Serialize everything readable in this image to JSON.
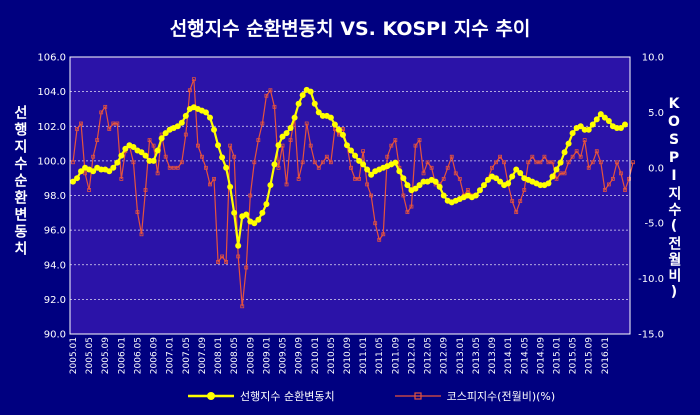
{
  "chart_data": {
    "type": "line",
    "title": "선행지수 순환변동치 VS. KOSPI 지수 추이",
    "ylabel": "선행지수순환변동치",
    "y2label": "KOSPI지수(전월비)",
    "ylim": [
      90.0,
      106.0
    ],
    "y2lim": [
      -15.0,
      10.0
    ],
    "y_ticks": [
      "106.0",
      "104.0",
      "102.0",
      "100.0",
      "98.0",
      "96.0",
      "94.0",
      "92.0",
      "90.0"
    ],
    "y2_ticks": [
      "10.0",
      "5.0",
      "0.0",
      "-5.0",
      "-10.0",
      "-15.0"
    ],
    "x_ticks": [
      "2005.01",
      "2005.05",
      "2005.09",
      "2006.01",
      "2006.05",
      "2006.09",
      "2007.01",
      "2007.05",
      "2007.09",
      "2008.01",
      "2008.05",
      "2008.09",
      "2009.01",
      "2009.05",
      "2009.09",
      "2010.01",
      "2010.05",
      "2010.09",
      "2011.01",
      "2011.05",
      "2011.09",
      "2012.01",
      "2012.05",
      "2012.09",
      "2013.01",
      "2013.05",
      "2013.09",
      "2014.01",
      "2014.05",
      "2014.09",
      "2015.01",
      "2015.05",
      "2015.09",
      "2016.01"
    ],
    "grid": "horizontal dashed",
    "legend": "bottom",
    "series": [
      {
        "name": "선행지수 순환변동치",
        "axis": "left",
        "color": "#ffff00",
        "values": [
          98.8,
          99.0,
          99.4,
          99.6,
          99.5,
          99.4,
          99.6,
          99.5,
          99.5,
          99.4,
          99.6,
          99.9,
          100.3,
          100.7,
          100.9,
          100.8,
          100.6,
          100.5,
          100.3,
          100.0,
          100.0,
          100.6,
          101.3,
          101.6,
          101.8,
          101.9,
          102.0,
          102.2,
          102.6,
          103.0,
          103.1,
          103.0,
          102.9,
          102.8,
          102.5,
          101.8,
          100.9,
          100.2,
          99.6,
          98.5,
          97.0,
          95.1,
          96.8,
          96.9,
          96.5,
          96.4,
          96.6,
          97.0,
          97.5,
          98.6,
          99.8,
          100.9,
          101.4,
          101.6,
          101.9,
          102.5,
          103.3,
          103.8,
          104.1,
          104.0,
          103.3,
          102.8,
          102.6,
          102.6,
          102.5,
          102.1,
          101.8,
          101.5,
          100.9,
          100.6,
          100.3,
          100.0,
          99.8,
          99.5,
          99.2,
          99.4,
          99.5,
          99.6,
          99.7,
          99.8,
          99.9,
          99.4,
          99.0,
          98.6,
          98.3,
          98.4,
          98.6,
          98.8,
          98.8,
          98.9,
          98.8,
          98.5,
          98.0,
          97.7,
          97.6,
          97.7,
          97.8,
          97.9,
          98.0,
          97.9,
          98.0,
          98.3,
          98.6,
          98.9,
          99.1,
          99.0,
          98.8,
          98.6,
          98.7,
          99.1,
          99.5,
          99.3,
          99.0,
          98.9,
          98.8,
          98.7,
          98.6,
          98.6,
          98.7,
          99.1,
          99.5,
          99.9,
          100.5,
          101.0,
          101.6,
          101.9,
          102.0,
          101.8,
          101.8,
          102.1,
          102.4,
          102.7,
          102.5,
          102.3,
          102.0,
          101.9,
          101.9,
          102.1
        ]
      },
      {
        "name": "코스피지수(전월비)(%)",
        "axis": "right",
        "color": "#e5533d",
        "values": [
          0.5,
          3.5,
          4.0,
          -0.5,
          -2.0,
          1.0,
          2.5,
          5.0,
          5.5,
          3.5,
          4.0,
          4.0,
          -1.0,
          1.5,
          2.0,
          0.5,
          -4.0,
          -6.0,
          -2.0,
          2.5,
          2.0,
          -0.5,
          3.0,
          1.0,
          0.0,
          0.0,
          0.0,
          0.5,
          3.0,
          7.0,
          8.0,
          2.0,
          1.0,
          0.0,
          -1.5,
          -1.0,
          -8.5,
          -8.0,
          -8.5,
          2.0,
          1.0,
          -8.0,
          -12.5,
          -9.0,
          -2.5,
          0.5,
          2.5,
          4.0,
          6.5,
          7.0,
          5.5,
          0.0,
          2.0,
          -1.5,
          2.5,
          4.5,
          -1.0,
          0.5,
          4.0,
          2.0,
          0.5,
          0.0,
          0.5,
          1.0,
          0.5,
          3.5,
          3.0,
          3.5,
          2.0,
          0.0,
          -1.0,
          -1.0,
          1.5,
          -1.5,
          -2.5,
          -5.0,
          -6.5,
          -6.0,
          1.0,
          2.0,
          2.5,
          0.0,
          -2.5,
          -4.0,
          -3.5,
          2.0,
          2.5,
          -0.5,
          0.5,
          0.0,
          -1.5,
          -1.5,
          -1.0,
          0.0,
          1.0,
          -0.5,
          -1.0,
          -2.5,
          -2.0,
          -2.5,
          -2.5,
          -2.0,
          -1.5,
          -1.0,
          0.0,
          0.5,
          1.0,
          0.5,
          -1.5,
          -3.0,
          -4.0,
          -3.0,
          -2.0,
          0.5,
          1.0,
          0.5,
          0.5,
          1.0,
          0.5,
          0.5,
          -1.0,
          -0.5,
          -0.5,
          0.5,
          1.0,
          1.5,
          1.0,
          2.5,
          0.0,
          0.5,
          1.5,
          0.5,
          -2.0,
          -1.5,
          -1.0,
          0.5,
          -0.5,
          -2.0,
          -1.0,
          0.5
        ]
      }
    ]
  }
}
